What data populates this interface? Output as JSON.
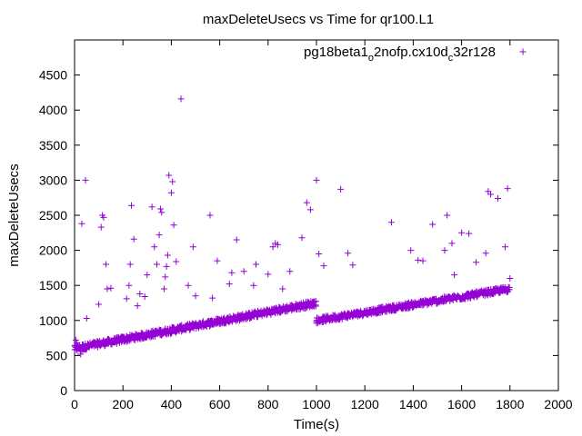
{
  "chart_data": {
    "type": "scatter",
    "title": "maxDeleteUsecs vs Time for qr100.L1",
    "xlabel": "Time(s)",
    "ylabel": "maxDeleteUsecs",
    "xlim": [
      0,
      2000
    ],
    "ylim": [
      0,
      5000
    ],
    "x_ticks": [
      0,
      200,
      400,
      600,
      800,
      1000,
      1200,
      1400,
      1600,
      1800,
      2000
    ],
    "y_ticks": [
      0,
      500,
      1000,
      1500,
      2000,
      2500,
      3000,
      3500,
      4000,
      4500
    ],
    "grid": false,
    "legend_position": "top-right",
    "colors": {
      "series": "#9400d3",
      "axis": "#000000"
    },
    "series": [
      {
        "name": "pg18beta1_o2nofp.cx10d_c32r128",
        "legend_label": {
          "parts": [
            {
              "t": "pg18beta1",
              "sub": false
            },
            {
              "t": "o",
              "sub": true
            },
            {
              "t": "2nofp.cx10d",
              "sub": false
            },
            {
              "t": "c",
              "sub": true
            },
            {
              "t": "32r128",
              "sub": false
            }
          ]
        },
        "marker": "+",
        "trend_segments": [
          {
            "x": [
              0,
              1000
            ],
            "y": [
              600,
              1250
            ],
            "spread": 90
          },
          {
            "x": [
              1000,
              1800
            ],
            "y": [
              1000,
              1450
            ],
            "spread": 80
          }
        ],
        "points": [
          [
            5,
            720
          ],
          [
            10,
            680
          ],
          [
            15,
            640
          ],
          [
            20,
            600
          ],
          [
            25,
            520
          ],
          [
            30,
            560
          ],
          [
            35,
            610
          ],
          [
            45,
            3000
          ],
          [
            30,
            2380
          ],
          [
            50,
            1030
          ],
          [
            100,
            1230
          ],
          [
            110,
            2330
          ],
          [
            115,
            2500
          ],
          [
            120,
            2470
          ],
          [
            135,
            1450
          ],
          [
            150,
            1460
          ],
          [
            130,
            1800
          ],
          [
            215,
            1310
          ],
          [
            225,
            1500
          ],
          [
            230,
            1800
          ],
          [
            235,
            2640
          ],
          [
            245,
            2160
          ],
          [
            260,
            1210
          ],
          [
            270,
            1380
          ],
          [
            290,
            1340
          ],
          [
            300,
            1650
          ],
          [
            320,
            2620
          ],
          [
            330,
            2050
          ],
          [
            340,
            1800
          ],
          [
            350,
            2220
          ],
          [
            355,
            2590
          ],
          [
            360,
            2540
          ],
          [
            370,
            1450
          ],
          [
            375,
            1620
          ],
          [
            380,
            1770
          ],
          [
            385,
            1930
          ],
          [
            390,
            3070
          ],
          [
            400,
            2820
          ],
          [
            405,
            2980
          ],
          [
            410,
            2360
          ],
          [
            420,
            1840
          ],
          [
            440,
            4160
          ],
          [
            470,
            1500
          ],
          [
            490,
            2050
          ],
          [
            500,
            1350
          ],
          [
            560,
            2500
          ],
          [
            570,
            1320
          ],
          [
            590,
            1850
          ],
          [
            640,
            1520
          ],
          [
            650,
            1680
          ],
          [
            670,
            2150
          ],
          [
            700,
            1700
          ],
          [
            740,
            1500
          ],
          [
            750,
            1800
          ],
          [
            800,
            1660
          ],
          [
            820,
            2050
          ],
          [
            830,
            2100
          ],
          [
            840,
            2080
          ],
          [
            860,
            1450
          ],
          [
            890,
            1700
          ],
          [
            940,
            2180
          ],
          [
            960,
            2680
          ],
          [
            975,
            2580
          ],
          [
            1000,
            3000
          ],
          [
            1010,
            1950
          ],
          [
            1030,
            1780
          ],
          [
            1100,
            2870
          ],
          [
            1130,
            1960
          ],
          [
            1150,
            1790
          ],
          [
            1310,
            2400
          ],
          [
            1390,
            2000
          ],
          [
            1420,
            1860
          ],
          [
            1440,
            1850
          ],
          [
            1480,
            2370
          ],
          [
            1530,
            2000
          ],
          [
            1540,
            2500
          ],
          [
            1560,
            2100
          ],
          [
            1570,
            1650
          ],
          [
            1600,
            2250
          ],
          [
            1630,
            2240
          ],
          [
            1660,
            1830
          ],
          [
            1700,
            1960
          ],
          [
            1710,
            2840
          ],
          [
            1720,
            2800
          ],
          [
            1750,
            2740
          ],
          [
            1780,
            2050
          ],
          [
            1790,
            2880
          ],
          [
            1800,
            1600
          ]
        ]
      }
    ]
  }
}
